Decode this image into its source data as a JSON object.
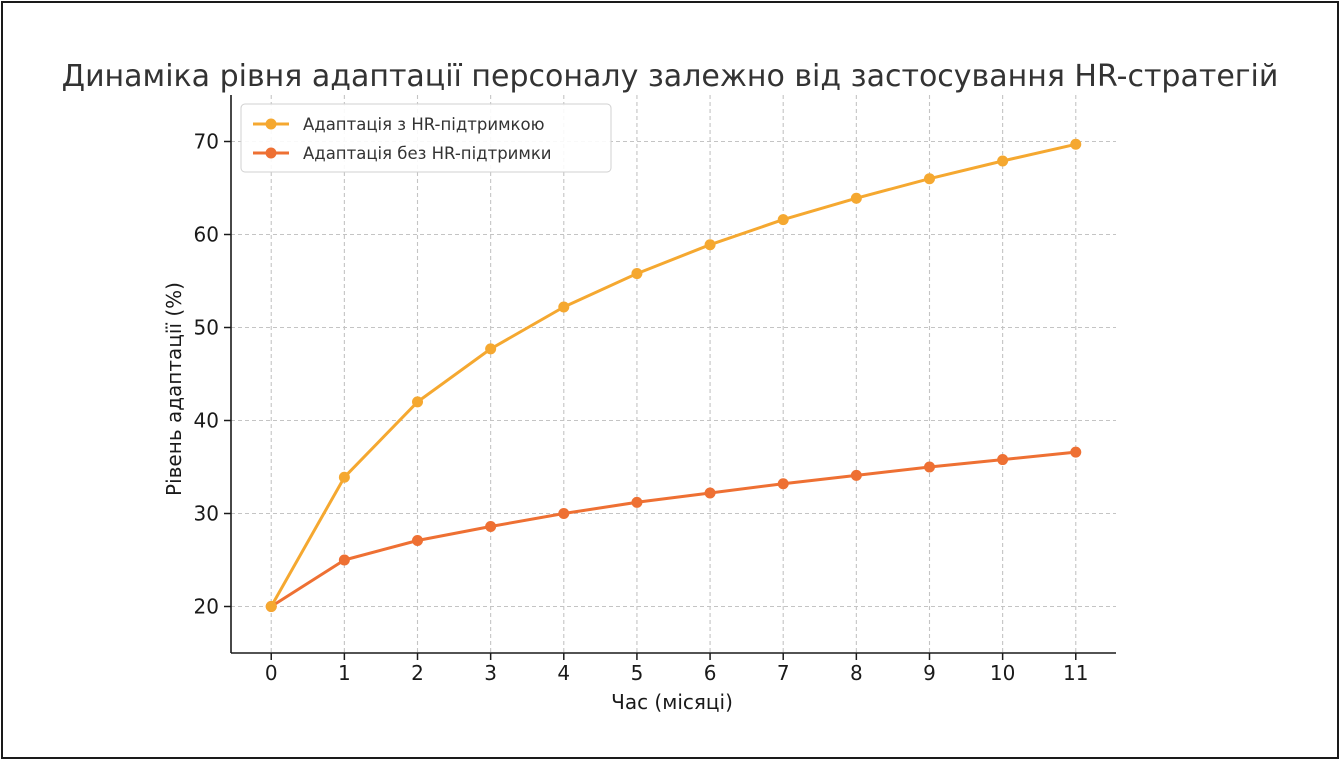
{
  "chart_data": {
    "type": "line",
    "title": "Динаміка рівня адаптації персоналу залежно від застосування HR-стратегій",
    "xlabel": "Час (місяці)",
    "ylabel": "Рівень адаптації (%)",
    "x": [
      0,
      1,
      2,
      3,
      4,
      5,
      6,
      7,
      8,
      9,
      10,
      11
    ],
    "x_ticks": [
      "0",
      "1",
      "2",
      "3",
      "4",
      "5",
      "6",
      "7",
      "8",
      "9",
      "10",
      "11"
    ],
    "y_ticks": [
      "20",
      "30",
      "40",
      "50",
      "60",
      "70"
    ],
    "xlim": [
      -0.55,
      11.55
    ],
    "ylim": [
      15,
      75
    ],
    "grid": true,
    "legend_position": "top-left",
    "series": [
      {
        "name": "Адаптація з HR-підтримкою",
        "color": "#F5A830",
        "values": [
          20,
          33.9,
          42.0,
          47.7,
          52.2,
          55.8,
          58.9,
          61.6,
          63.9,
          66.0,
          67.9,
          69.7
        ]
      },
      {
        "name": "Адаптація без HR-підтримки",
        "color": "#EE7033",
        "values": [
          20,
          25.0,
          27.1,
          28.6,
          30.0,
          31.2,
          32.2,
          33.2,
          34.1,
          35.0,
          35.8,
          36.6
        ]
      }
    ]
  }
}
